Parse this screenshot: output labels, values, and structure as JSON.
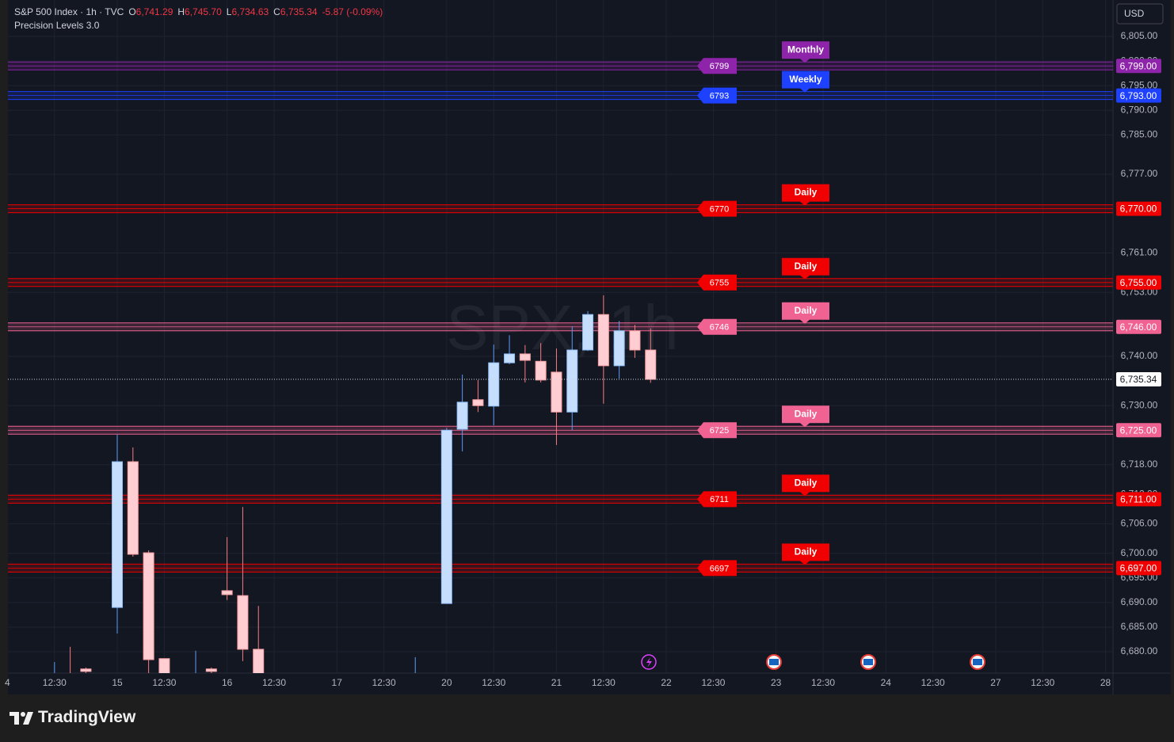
{
  "header": {
    "symbol": "S&P 500 Index · 1h · TVC",
    "ohlc": [
      {
        "key": "O",
        "value": "6,741.29"
      },
      {
        "key": "H",
        "value": "6,745.70"
      },
      {
        "key": "L",
        "value": "6,734.63"
      },
      {
        "key": "C",
        "value": "6,735.34"
      }
    ],
    "change": "-5.87 (-0.09%)",
    "indicator": "Precision Levels 3.0",
    "currency": "USD",
    "watermark": "SPX, 1h"
  },
  "footer": {
    "brand": "TradingView"
  },
  "chart_data": {
    "type": "candlestick",
    "up_color": "#90bff9",
    "down_color": "#faa1a4",
    "x": [
      -4,
      -3,
      -2,
      0,
      1,
      2,
      3,
      5,
      6,
      7,
      8,
      9,
      19,
      21,
      22,
      23,
      24,
      25,
      26,
      27,
      28,
      29,
      30,
      31,
      32,
      33,
      34
    ],
    "open": [
      6672,
      6672,
      6676.5,
      6689.0,
      6718.6,
      6700.1,
      6678.6,
      6672,
      6676.5,
      6692.4,
      6691.4,
      6680.5,
      6672,
      6689.8,
      6725.2,
      6731.2,
      6729.9,
      6738.7,
      6740.5,
      6739.0,
      6736.8,
      6728.7,
      6741.3,
      6748.5,
      6738.1,
      6745.2,
      6741.29
    ],
    "high": [
      6677.9,
      6681.0,
      6676.8,
      6724.1,
      6721.5,
      6700.6,
      6678.6,
      6680.2,
      6676.8,
      6703.3,
      6709.4,
      6689.3,
      6678.9,
      6725.5,
      6736.3,
      6735.2,
      6742.4,
      6744.3,
      6742.3,
      6742.7,
      6741.6,
      6746.1,
      6749.2,
      6752.4,
      6747.2,
      6746.4,
      6745.7
    ],
    "low": [
      6670,
      6670,
      6672,
      6683.7,
      6699.3,
      6674,
      6670,
      6670,
      6672,
      6690.5,
      6678.1,
      6670,
      6670,
      6689.8,
      6720.7,
      6728.7,
      6726.0,
      6738.4,
      6734.7,
      6734.7,
      6722.0,
      6725.0,
      6741.1,
      6730.4,
      6735.5,
      6739.7,
      6734.63
    ],
    "close": [
      6674,
      6671,
      6676.0,
      6718.6,
      6699.8,
      6678.4,
      6672,
      6674,
      6676.0,
      6691.6,
      6680.5,
      6672,
      6674,
      6725.0,
      6730.7,
      6730.0,
      6738.7,
      6740.5,
      6739.2,
      6735.2,
      6728.7,
      6741.3,
      6748.5,
      6738.1,
      6745.2,
      6741.3,
      6735.34
    ],
    "xlim": [
      -6.97,
      63.48
    ],
    "xticks": [
      {
        "value": -7,
        "label": "4"
      },
      {
        "value": -4,
        "label": "12:30"
      },
      {
        "value": 0,
        "label": "15"
      },
      {
        "value": 3,
        "label": "12:30"
      },
      {
        "value": 7,
        "label": "16"
      },
      {
        "value": 10,
        "label": "12:30"
      },
      {
        "value": 14,
        "label": "17"
      },
      {
        "value": 17,
        "label": "12:30"
      },
      {
        "value": 21,
        "label": "20"
      },
      {
        "value": 24,
        "label": "12:30"
      },
      {
        "value": 28,
        "label": "21"
      },
      {
        "value": 31,
        "label": "12:30"
      },
      {
        "value": 35,
        "label": "22"
      },
      {
        "value": 38,
        "label": "12:30"
      },
      {
        "value": 42,
        "label": "23"
      },
      {
        "value": 45,
        "label": "12:30"
      },
      {
        "value": 49,
        "label": "24"
      },
      {
        "value": 52,
        "label": "12:30"
      },
      {
        "value": 56,
        "label": "27"
      },
      {
        "value": 59,
        "label": "12:30"
      },
      {
        "value": 63,
        "label": "28"
      }
    ],
    "ylim": [
      6675.66,
      6812.4
    ],
    "yticks": [
      {
        "value": 6805,
        "label": "6,805.00"
      },
      {
        "value": 6800,
        "label": "6,800.00"
      },
      {
        "value": 6795,
        "label": "6,795.00"
      },
      {
        "value": 6790,
        "label": "6,790.00"
      },
      {
        "value": 6785,
        "label": "6,785.00"
      },
      {
        "value": 6777,
        "label": "6,777.00"
      },
      {
        "value": 6761,
        "label": "6,761.00"
      },
      {
        "value": 6753,
        "label": "6,753.00"
      },
      {
        "value": 6740,
        "label": "6,740.00"
      },
      {
        "value": 6730,
        "label": "6,730.00"
      },
      {
        "value": 6718,
        "label": "6,718.00"
      },
      {
        "value": 6712,
        "label": "6,712.00"
      },
      {
        "value": 6706,
        "label": "6,706.00"
      },
      {
        "value": 6700,
        "label": "6,700.00"
      },
      {
        "value": 6695,
        "label": "6,695.00"
      },
      {
        "value": 6690,
        "label": "6,690.00"
      },
      {
        "value": 6685,
        "label": "6,685.00"
      },
      {
        "value": 6680,
        "label": "6,680.00"
      }
    ],
    "grid": true,
    "last_price": {
      "value": 6735.34,
      "label": "6,735.34"
    },
    "levels": [
      {
        "value": 6799,
        "price_label": "6,799.00",
        "tag": "Monthly",
        "color": "#8e24aa"
      },
      {
        "value": 6793,
        "price_label": "6,793.00",
        "tag": "Weekly",
        "color": "#1e40ff"
      },
      {
        "value": 6770,
        "price_label": "6,770.00",
        "tag": "Daily",
        "color": "#f00000"
      },
      {
        "value": 6755,
        "price_label": "6,755.00",
        "tag": "Daily",
        "color": "#f00000"
      },
      {
        "value": 6746,
        "price_label": "6,746.00",
        "tag": "Daily",
        "color": "#f06292"
      },
      {
        "value": 6725,
        "price_label": "6,725.00",
        "tag": "Daily",
        "color": "#f06292"
      },
      {
        "value": 6711,
        "price_label": "6,711.00",
        "tag": "Daily",
        "color": "#f00000"
      },
      {
        "value": 6697,
        "price_label": "6,697.00",
        "tag": "Daily",
        "color": "#f00000"
      }
    ]
  }
}
